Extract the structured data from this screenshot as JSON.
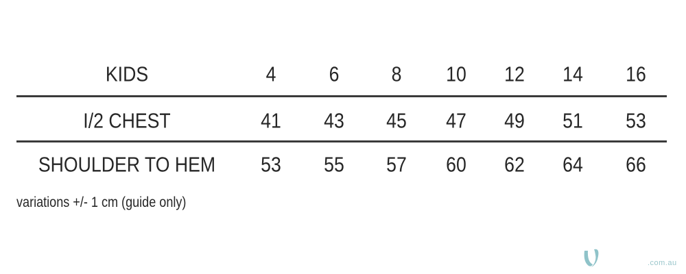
{
  "table": {
    "header": {
      "label": "KIDS",
      "values": [
        "4",
        "6",
        "8",
        "10",
        "12",
        "14",
        "16"
      ]
    },
    "rows": [
      {
        "label": "I/2 CHEST",
        "values": [
          "41",
          "43",
          "45",
          "47",
          "49",
          "51",
          "53"
        ]
      },
      {
        "label": "SHOULDER TO HEM",
        "values": [
          "53",
          "55",
          "57",
          "60",
          "62",
          "64",
          "66"
        ]
      }
    ]
  },
  "note": "variations +/- 1 cm (guide only)",
  "watermark": {
    "domain": ".com.au",
    "color": "#8fc3c9"
  }
}
